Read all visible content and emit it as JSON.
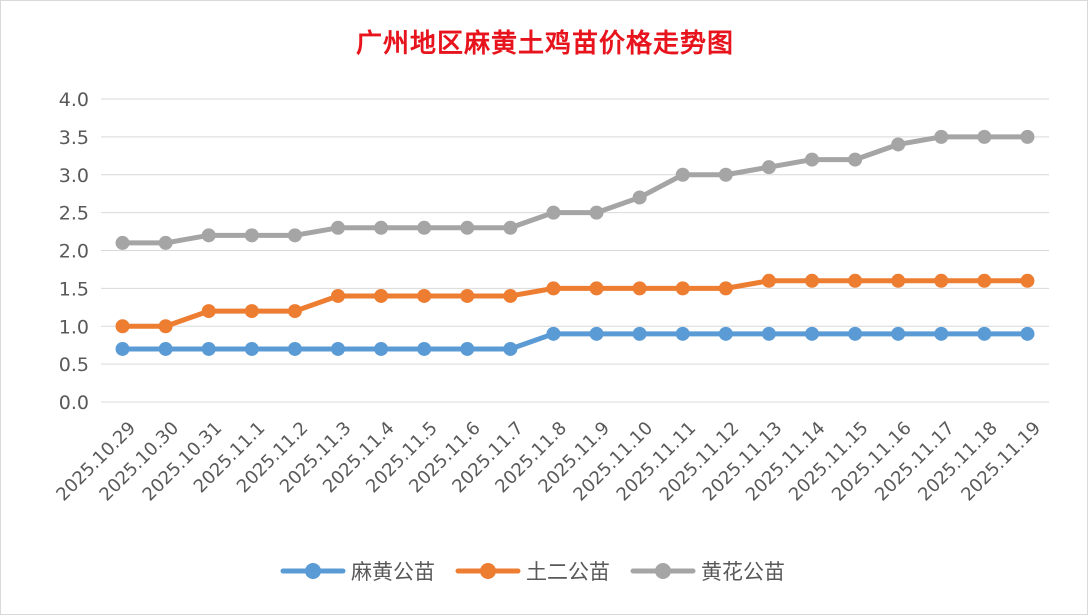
{
  "chart_data": {
    "type": "line",
    "title": "广州地区麻黄土鸡苗价格走势图",
    "categories": [
      "2025.10.29",
      "2025.10.30",
      "2025.10.31",
      "2025.11.1",
      "2025.11.2",
      "2025.11.3",
      "2025.11.4",
      "2025.11.5",
      "2025.11.6",
      "2025.11.7",
      "2025.11.8",
      "2025.11.9",
      "2025.11.10",
      "2025.11.11",
      "2025.11.12",
      "2025.11.13",
      "2025.11.14",
      "2025.11.15",
      "2025.11.16",
      "2025.11.17",
      "2025.11.18",
      "2025.11.19"
    ],
    "ylim": [
      0,
      4
    ],
    "yticks": [
      "0.0",
      "0.5",
      "1.0",
      "1.5",
      "2.0",
      "2.5",
      "3.0",
      "3.5",
      "4.0"
    ],
    "grid": true,
    "legend_position": "bottom",
    "series": [
      {
        "name": "麻黄公苗",
        "color": "#5b9bd5",
        "values": [
          0.7,
          0.7,
          0.7,
          0.7,
          0.7,
          0.7,
          0.7,
          0.7,
          0.7,
          0.7,
          0.9,
          0.9,
          0.9,
          0.9,
          0.9,
          0.9,
          0.9,
          0.9,
          0.9,
          0.9,
          0.9,
          0.9
        ]
      },
      {
        "name": "土二公苗",
        "color": "#ed7d31",
        "values": [
          1.0,
          1.0,
          1.2,
          1.2,
          1.2,
          1.4,
          1.4,
          1.4,
          1.4,
          1.4,
          1.5,
          1.5,
          1.5,
          1.5,
          1.5,
          1.6,
          1.6,
          1.6,
          1.6,
          1.6,
          1.6,
          1.6
        ]
      },
      {
        "name": "黄花公苗",
        "color": "#a5a5a5",
        "values": [
          2.1,
          2.1,
          2.2,
          2.2,
          2.2,
          2.3,
          2.3,
          2.3,
          2.3,
          2.3,
          2.5,
          2.5,
          2.7,
          3.0,
          3.0,
          3.1,
          3.2,
          3.2,
          3.4,
          3.5,
          3.5,
          3.5
        ]
      }
    ]
  }
}
